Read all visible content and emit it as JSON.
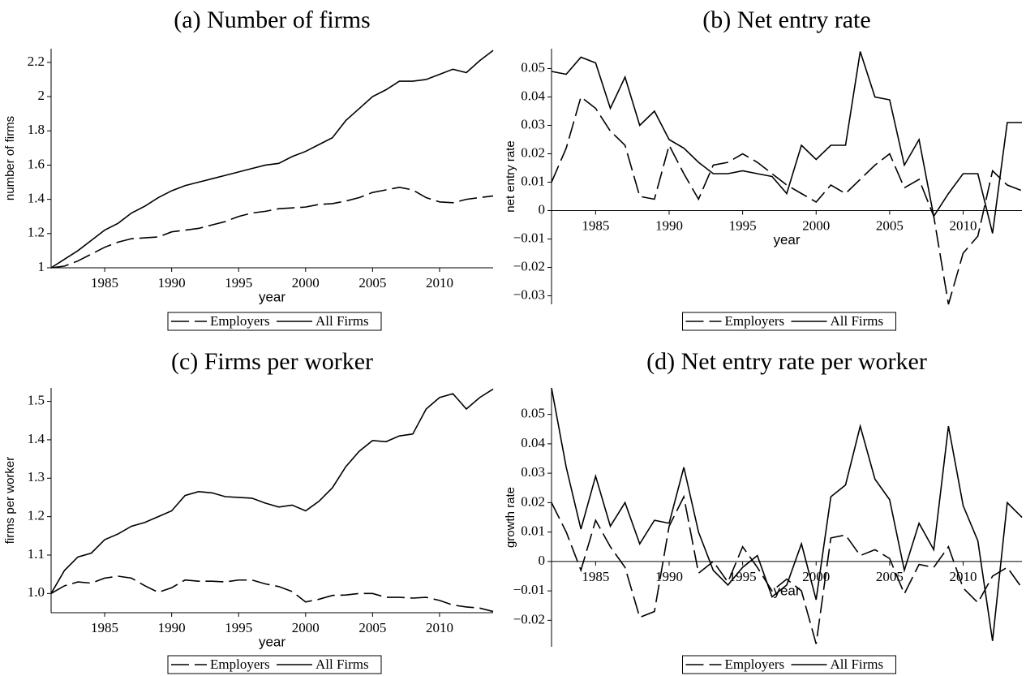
{
  "chart_data": [
    {
      "type": "line",
      "title": "(a) Number of firms",
      "xlabel": "year",
      "ylabel": "number of firms",
      "x": [
        1981,
        1982,
        1983,
        1984,
        1985,
        1986,
        1987,
        1988,
        1989,
        1990,
        1991,
        1992,
        1993,
        1994,
        1995,
        1996,
        1997,
        1998,
        1999,
        2000,
        2001,
        2002,
        2003,
        2004,
        2005,
        2006,
        2007,
        2008,
        2009,
        2010,
        2011,
        2012,
        2013,
        2014
      ],
      "series": [
        {
          "name": "Employers",
          "color": "#000000",
          "dash": true,
          "values": [
            1.0,
            1.01,
            1.04,
            1.08,
            1.12,
            1.15,
            1.17,
            1.175,
            1.18,
            1.21,
            1.22,
            1.23,
            1.25,
            1.27,
            1.3,
            1.32,
            1.33,
            1.345,
            1.35,
            1.355,
            1.37,
            1.375,
            1.39,
            1.41,
            1.44,
            1.455,
            1.47,
            1.455,
            1.41,
            1.385,
            1.38,
            1.4,
            1.41,
            1.42
          ]
        },
        {
          "name": "All Firms",
          "color": "#000000",
          "dash": false,
          "values": [
            1.0,
            1.05,
            1.1,
            1.16,
            1.22,
            1.26,
            1.32,
            1.36,
            1.41,
            1.45,
            1.48,
            1.5,
            1.52,
            1.54,
            1.56,
            1.58,
            1.6,
            1.61,
            1.65,
            1.68,
            1.72,
            1.76,
            1.86,
            1.93,
            2.0,
            2.04,
            2.09,
            2.09,
            2.1,
            2.13,
            2.16,
            2.14,
            2.21,
            2.27
          ]
        }
      ],
      "xlim": [
        1981,
        2014
      ],
      "xticks": [
        1985,
        1990,
        1995,
        2000,
        2005,
        2010
      ],
      "ylim": [
        1,
        2.28
      ],
      "yticks": [
        1,
        1.2,
        1.4,
        1.6,
        1.8,
        2,
        2.2
      ],
      "legend": "bottom"
    },
    {
      "type": "line",
      "title": "(b) Net entry rate",
      "xlabel": "year",
      "ylabel": "net entry rate",
      "x": [
        1982,
        1983,
        1984,
        1985,
        1986,
        1987,
        1988,
        1989,
        1990,
        1991,
        1992,
        1993,
        1994,
        1995,
        1996,
        1997,
        1998,
        1999,
        2000,
        2001,
        2002,
        2003,
        2004,
        2005,
        2006,
        2007,
        2008,
        2009,
        2010,
        2011,
        2012,
        2013,
        2014
      ],
      "series": [
        {
          "name": "Employers",
          "color": "#000000",
          "dash": true,
          "values": [
            0.01,
            0.022,
            0.04,
            0.036,
            0.028,
            0.023,
            0.005,
            0.004,
            0.023,
            0.013,
            0.004,
            0.016,
            0.017,
            0.02,
            0.017,
            0.013,
            0.009,
            0.006,
            0.003,
            0.009,
            0.006,
            0.011,
            0.016,
            0.02,
            0.008,
            0.011,
            -0.002,
            -0.033,
            -0.015,
            -0.009,
            0.014,
            0.009,
            0.007
          ]
        },
        {
          "name": "All Firms",
          "color": "#000000",
          "dash": false,
          "values": [
            0.049,
            0.048,
            0.054,
            0.052,
            0.036,
            0.047,
            0.03,
            0.035,
            0.025,
            0.022,
            0.017,
            0.013,
            0.013,
            0.014,
            0.013,
            0.012,
            0.006,
            0.023,
            0.018,
            0.023,
            0.023,
            0.056,
            0.04,
            0.039,
            0.016,
            0.025,
            -0.002,
            0.006,
            0.013,
            0.013,
            -0.008,
            0.031,
            0.031
          ]
        }
      ],
      "xlim": [
        1982,
        2014
      ],
      "xticks": [
        1985,
        1990,
        1995,
        2000,
        2005,
        2010
      ],
      "ylim": [
        -0.033,
        0.057
      ],
      "yticks": [
        {
          "value": -0.03,
          "label": "−0.03"
        },
        {
          "value": -0.02,
          "label": "−0.02"
        },
        {
          "value": -0.01,
          "label": "−0.01"
        },
        0,
        0.01,
        0.02,
        0.03,
        0.04,
        0.05
      ],
      "legend": "bottom"
    },
    {
      "type": "line",
      "title": "(c) Firms per worker",
      "xlabel": "year",
      "ylabel": "firms per worker",
      "x": [
        1981,
        1982,
        1983,
        1984,
        1985,
        1986,
        1987,
        1988,
        1989,
        1990,
        1991,
        1992,
        1993,
        1994,
        1995,
        1996,
        1997,
        1998,
        1999,
        2000,
        2001,
        2002,
        2003,
        2004,
        2005,
        2006,
        2007,
        2008,
        2009,
        2010,
        2011,
        2012,
        2013,
        2014
      ],
      "series": [
        {
          "name": "Employers",
          "color": "#000000",
          "dash": true,
          "values": [
            1.0,
            1.02,
            1.03,
            1.027,
            1.04,
            1.045,
            1.04,
            1.02,
            1.003,
            1.015,
            1.035,
            1.032,
            1.032,
            1.03,
            1.035,
            1.035,
            1.025,
            1.018,
            1.005,
            0.978,
            0.985,
            0.995,
            0.996,
            1.0,
            1.0,
            0.99,
            0.99,
            0.988,
            0.99,
            0.982,
            0.97,
            0.965,
            0.962,
            0.953
          ]
        },
        {
          "name": "All Firms",
          "color": "#000000",
          "dash": false,
          "values": [
            1.0,
            1.06,
            1.095,
            1.105,
            1.14,
            1.155,
            1.175,
            1.185,
            1.2,
            1.215,
            1.255,
            1.265,
            1.262,
            1.252,
            1.25,
            1.248,
            1.235,
            1.225,
            1.23,
            1.215,
            1.24,
            1.275,
            1.33,
            1.37,
            1.398,
            1.395,
            1.41,
            1.415,
            1.48,
            1.51,
            1.52,
            1.48,
            1.51,
            1.532
          ]
        }
      ],
      "xlim": [
        1981,
        2014
      ],
      "xticks": [
        1985,
        1990,
        1995,
        2000,
        2005,
        2010
      ],
      "ylim": [
        0.95,
        1.535
      ],
      "yticks": [
        {
          "value": 1,
          "label": "1.0"
        },
        1.1,
        1.2,
        1.3,
        1.4,
        1.5
      ],
      "legend": "bottom"
    },
    {
      "type": "line",
      "title": "(d) Net entry rate per worker",
      "xlabel": "year",
      "ylabel": "growth rate",
      "x": [
        1982,
        1983,
        1984,
        1985,
        1986,
        1987,
        1988,
        1989,
        1990,
        1991,
        1992,
        1993,
        1994,
        1995,
        1996,
        1997,
        1998,
        1999,
        2000,
        2001,
        2002,
        2003,
        2004,
        2005,
        2006,
        2007,
        2008,
        2009,
        2010,
        2011,
        2012,
        2013,
        2014
      ],
      "series": [
        {
          "name": "Employers",
          "color": "#000000",
          "dash": true,
          "values": [
            0.02,
            0.01,
            -0.003,
            0.014,
            0.005,
            -0.002,
            -0.019,
            -0.017,
            0.012,
            0.022,
            -0.004,
            0.0,
            -0.007,
            0.005,
            -0.002,
            -0.01,
            -0.006,
            -0.01,
            -0.028,
            0.008,
            0.009,
            0.002,
            0.004,
            0.001,
            -0.011,
            -0.001,
            -0.002,
            0.005,
            -0.009,
            -0.014,
            -0.005,
            -0.002,
            -0.009
          ]
        },
        {
          "name": "All Firms",
          "color": "#000000",
          "dash": false,
          "values": [
            0.059,
            0.032,
            0.011,
            0.029,
            0.012,
            0.02,
            0.006,
            0.014,
            0.013,
            0.032,
            0.01,
            -0.003,
            -0.008,
            -0.002,
            0.002,
            -0.012,
            -0.008,
            0.006,
            -0.013,
            0.022,
            0.026,
            0.046,
            0.028,
            0.021,
            -0.003,
            0.013,
            0.004,
            0.046,
            0.019,
            0.007,
            -0.027,
            0.02,
            0.015
          ]
        }
      ],
      "xlim": [
        1982,
        2014
      ],
      "xticks": [
        1985,
        1990,
        1995,
        2000,
        2005,
        2010
      ],
      "ylim": [
        -0.029,
        0.059
      ],
      "yticks": [
        {
          "value": -0.02,
          "label": "−0.02"
        },
        {
          "value": -0.01,
          "label": "−0.01"
        },
        0,
        0.01,
        0.02,
        0.03,
        0.04,
        0.05
      ],
      "legend": "bottom"
    }
  ]
}
